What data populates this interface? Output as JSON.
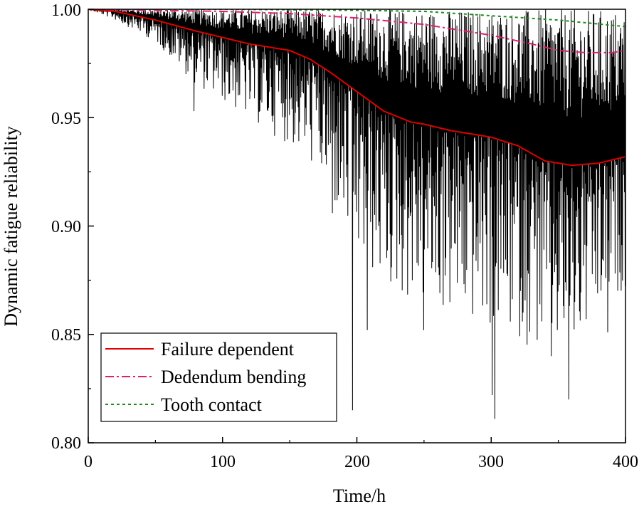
{
  "chart_data": {
    "type": "line",
    "title": "",
    "xlabel": "Time/h",
    "ylabel": "Dynamic fatigue reliability",
    "xlim": [
      0,
      400
    ],
    "ylim": [
      0.8,
      1.0
    ],
    "xticks": [
      0,
      100,
      200,
      300,
      400
    ],
    "xtick_labels": [
      "0",
      "100",
      "200",
      "300",
      "400"
    ],
    "yticks": [
      0.8,
      0.85,
      0.9,
      0.95,
      1.0
    ],
    "ytick_labels": [
      "0.80",
      "0.85",
      "0.90",
      "0.95",
      "1.00"
    ],
    "legend_position": "bottom-left",
    "noise_series": {
      "name": "Dynamic fatigue reliability (instantaneous)",
      "color": "#000000",
      "segments": [
        {
          "x": 0,
          "amp": 0.0
        },
        {
          "x": 20,
          "amp": 0.004
        },
        {
          "x": 50,
          "amp": 0.01
        },
        {
          "x": 80,
          "amp": 0.025
        },
        {
          "x": 120,
          "amp": 0.035
        },
        {
          "x": 170,
          "amp": 0.05
        },
        {
          "x": 200,
          "amp": 0.08
        },
        {
          "x": 300,
          "amp": 0.09
        },
        {
          "x": 360,
          "amp": 0.09
        },
        {
          "x": 400,
          "amp": 0.06
        }
      ],
      "spikes": [
        {
          "x": 197,
          "y": 0.815
        },
        {
          "x": 301,
          "y": 0.822
        },
        {
          "x": 303,
          "y": 0.811
        },
        {
          "x": 358,
          "y": 0.82
        },
        {
          "x": 345,
          "y": 0.84
        },
        {
          "x": 208,
          "y": 0.852
        },
        {
          "x": 250,
          "y": 0.852
        },
        {
          "x": 387,
          "y": 0.851
        },
        {
          "x": 182,
          "y": 0.906
        },
        {
          "x": 79,
          "y": 0.953
        }
      ]
    },
    "series": [
      {
        "name": "Failure dependent",
        "color": "#e00000",
        "dash": "solid",
        "x": [
          0,
          20,
          50,
          80,
          100,
          120,
          140,
          150,
          165,
          180,
          200,
          220,
          240,
          250,
          270,
          290,
          300,
          320,
          340,
          360,
          380,
          400
        ],
        "values": [
          1.0,
          0.999,
          0.995,
          0.99,
          0.987,
          0.984,
          0.982,
          0.981,
          0.977,
          0.971,
          0.962,
          0.953,
          0.948,
          0.947,
          0.944,
          0.942,
          0.941,
          0.937,
          0.93,
          0.928,
          0.929,
          0.932
        ]
      },
      {
        "name": "Dedendum bending",
        "color": "#e0206e",
        "dash": "dashdot",
        "x": [
          0,
          50,
          100,
          150,
          200,
          250,
          300,
          330,
          350,
          370,
          390,
          400
        ],
        "values": [
          1.0,
          0.9995,
          0.999,
          0.998,
          0.996,
          0.993,
          0.988,
          0.984,
          0.981,
          0.98,
          0.98,
          0.981
        ]
      },
      {
        "name": "Tooth contact",
        "color": "#1a8c1a",
        "dash": "dashed",
        "x": [
          0,
          100,
          200,
          250,
          300,
          350,
          400
        ],
        "values": [
          1.0,
          1.0,
          0.9995,
          0.999,
          0.997,
          0.995,
          0.992
        ]
      }
    ],
    "legend": [
      "Failure dependent",
      "Dedendum bending",
      "Tooth contact"
    ]
  }
}
